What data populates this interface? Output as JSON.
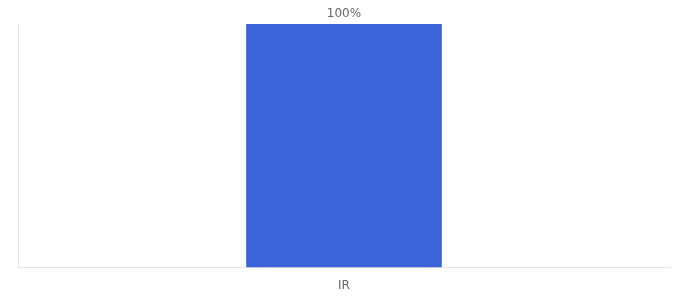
{
  "chart_data": {
    "type": "bar",
    "categories": [
      "IR"
    ],
    "values": [
      100
    ],
    "value_labels": [
      "100%"
    ],
    "data_labels": true,
    "color": "#3d63d8",
    "ylim": [
      0,
      100
    ],
    "grid": false,
    "tick_labels": "x"
  }
}
